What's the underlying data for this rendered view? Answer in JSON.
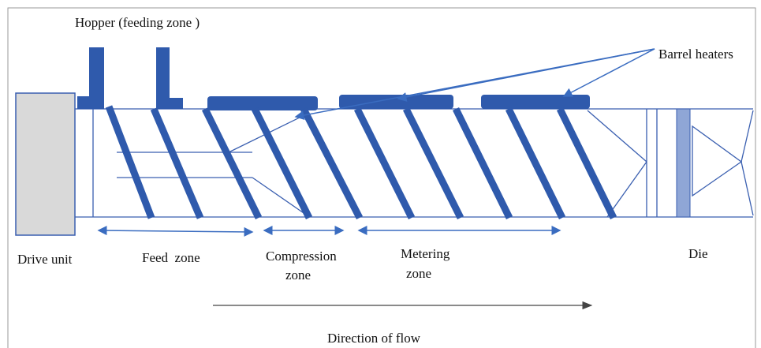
{
  "labels": {
    "hopper": "Hopper (feeding zone )",
    "barrel_heaters": "Barrel heaters",
    "drive_unit": "Drive unit",
    "feed_zone": "Feed  zone",
    "compression_zone": [
      "Compression",
      "zone"
    ],
    "metering_zone": [
      "Metering",
      "zone"
    ],
    "die": "Die",
    "direction": "Direction of flow"
  }
}
